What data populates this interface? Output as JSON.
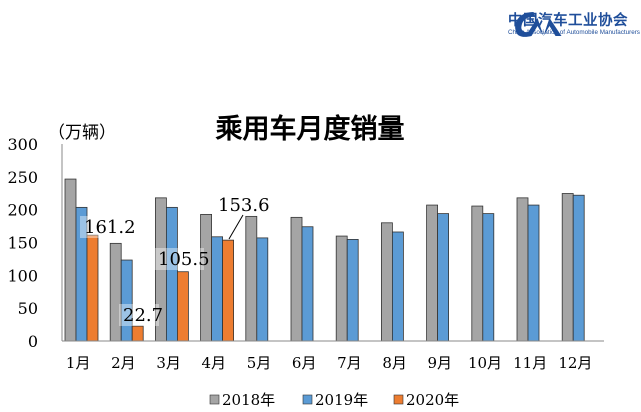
{
  "logo": {
    "name_cn": "中国汽车工业协会",
    "name_en": "China Association of Automobile Manufacturers",
    "mark": "CAAM"
  },
  "chart_data": {
    "type": "bar",
    "title": "乘用车月度销量",
    "ylabel": "（万辆）",
    "xlabel": "",
    "ylim": [
      0,
      300
    ],
    "yticks": [
      0,
      50,
      100,
      150,
      200,
      250,
      300
    ],
    "grid": false,
    "legend_position": "bottom",
    "categories": [
      "1月",
      "2月",
      "3月",
      "4月",
      "5月",
      "6月",
      "7月",
      "8月",
      "9月",
      "10月",
      "11月",
      "12月"
    ],
    "series": [
      {
        "name": "2018年",
        "color": "#a5a5a5",
        "values": [
          246.6,
          148.7,
          218,
          192.8,
          189.8,
          188.3,
          159.8,
          180,
          207,
          205.5,
          218,
          224.6
        ]
      },
      {
        "name": "2019年",
        "color": "#5b9bd5",
        "values": [
          203.5,
          123.3,
          203.5,
          158.7,
          157,
          174,
          154.7,
          166,
          194,
          194,
          207,
          222
        ]
      },
      {
        "name": "2020年",
        "color": "#ed7d31",
        "values": [
          161.2,
          22.7,
          105.5,
          153.6,
          null,
          null,
          null,
          null,
          null,
          null,
          null,
          null
        ]
      }
    ],
    "data_labels": [
      {
        "series": "2020年",
        "category": "1月",
        "text": "161.2"
      },
      {
        "series": "2020年",
        "category": "2月",
        "text": "22.7"
      },
      {
        "series": "2020年",
        "category": "3月",
        "text": "105.5"
      },
      {
        "series": "2020年",
        "category": "4月",
        "text": "153.6"
      }
    ]
  }
}
